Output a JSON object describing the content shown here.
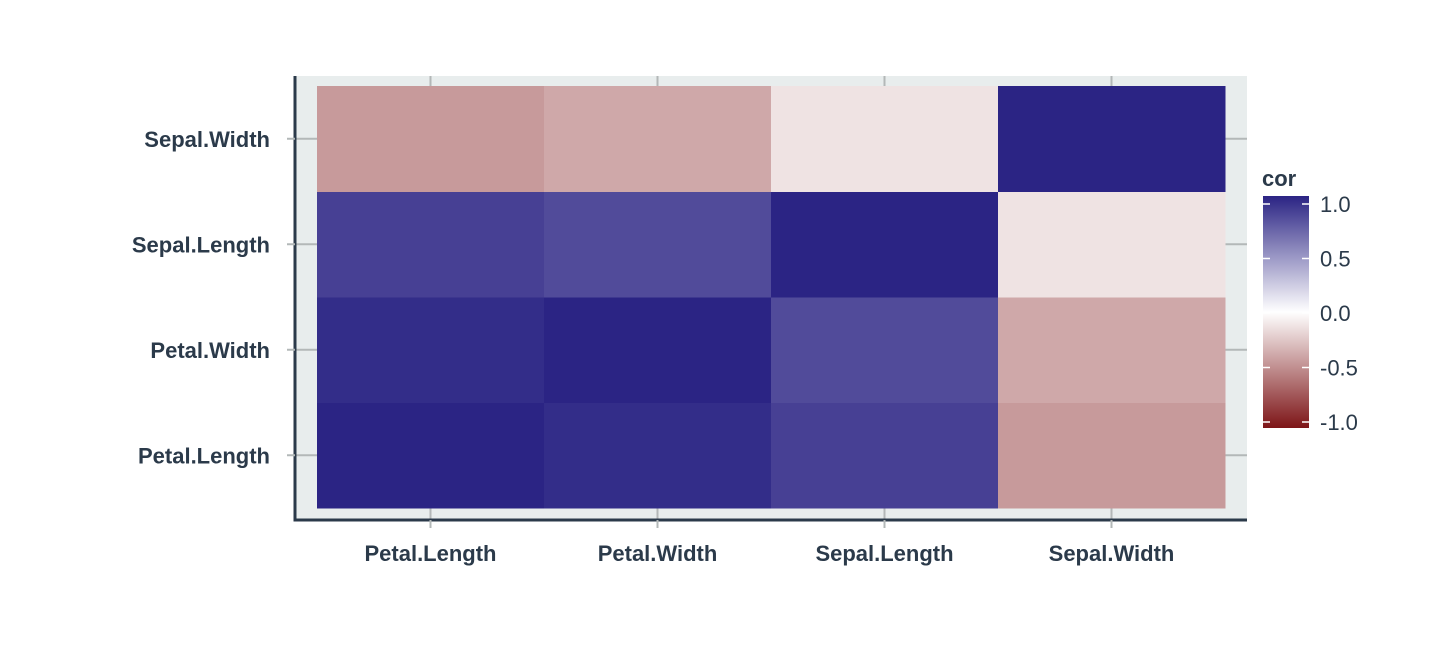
{
  "chart_data": {
    "type": "heatmap",
    "x_categories": [
      "Petal.Length",
      "Petal.Width",
      "Sepal.Length",
      "Sepal.Width"
    ],
    "y_categories": [
      "Petal.Length",
      "Petal.Width",
      "Sepal.Length",
      "Sepal.Width"
    ],
    "values": [
      [
        1.0,
        0.96,
        0.87,
        -0.43
      ],
      [
        0.96,
        1.0,
        0.82,
        -0.37
      ],
      [
        0.87,
        0.82,
        1.0,
        -0.12
      ],
      [
        -0.43,
        -0.37,
        -0.12,
        1.0
      ]
    ],
    "value_range": [
      -1,
      1
    ],
    "legend": {
      "title": "cor",
      "ticks": [
        "1.0",
        "0.5",
        "0.0",
        "-0.5",
        "-1.0"
      ],
      "tick_values": [
        1.0,
        0.5,
        0.0,
        -0.5,
        -1.0
      ],
      "placement": "right"
    },
    "colors": {
      "high": "#2b2484",
      "mid": "#ffffff",
      "low": "#7d1517",
      "panel_background": "#e8eded",
      "grid": "#b3b8b8",
      "axis": "#2b3a4a"
    },
    "title": "",
    "xlabel": "",
    "ylabel": "",
    "grid": true
  }
}
